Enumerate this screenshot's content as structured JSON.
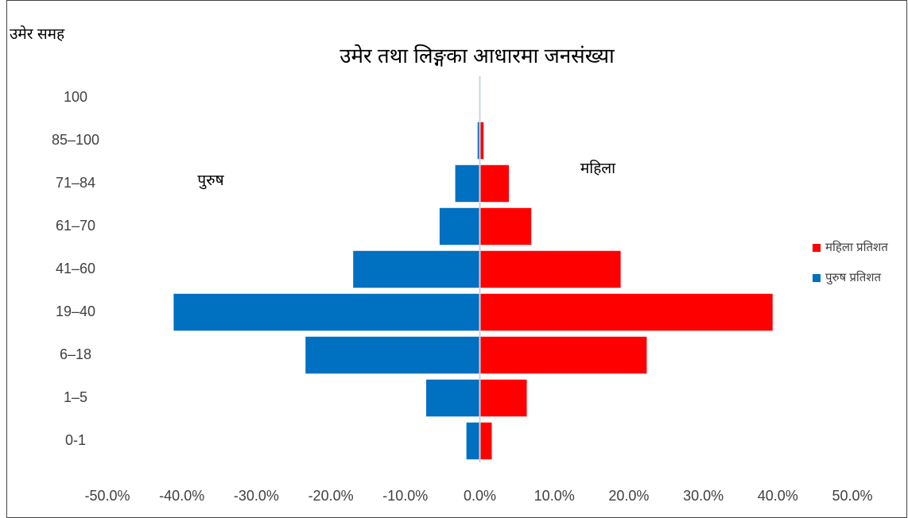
{
  "chart_data": {
    "type": "bar",
    "orientation": "horizontal",
    "title": "उमेर तथा लिङ्गका आधारमा जनसंख्या",
    "y_label": "उमेर समह",
    "annotations": [
      "पुरुष",
      "महिला"
    ],
    "categories": [
      "0-1",
      "1–5",
      "6–18",
      "19–40",
      "41–60",
      "61–70",
      "71–84",
      "85–100",
      "100"
    ],
    "series": [
      {
        "name": "महिला प्रतिशत",
        "color": "#ff0000",
        "values": [
          1.6,
          6.3,
          22.4,
          39.3,
          18.9,
          6.9,
          3.9,
          0.5,
          0.1
        ]
      },
      {
        "name": "पुरुष प्रतिशत",
        "color": "#0070c0",
        "values": [
          -1.8,
          -7.2,
          -23.4,
          -41.1,
          -17.0,
          -5.4,
          -3.3,
          -0.3,
          -0.1
        ]
      }
    ],
    "xlim": [
      -50,
      50
    ],
    "xticks": [
      {
        "value": -50,
        "label": "-50.0%"
      },
      {
        "value": -40,
        "label": "-40.0%"
      },
      {
        "value": -30,
        "label": "-30.0%"
      },
      {
        "value": -20,
        "label": "-20.0%"
      },
      {
        "value": -10,
        "label": "-10.0%"
      },
      {
        "value": 0,
        "label": "0.0%"
      },
      {
        "value": 10,
        "label": "10.0%"
      },
      {
        "value": 20,
        "label": "20.0%"
      },
      {
        "value": 30,
        "label": "30.0%"
      },
      {
        "value": 40,
        "label": "40.0%"
      },
      {
        "value": 50,
        "label": "50.0%"
      }
    ],
    "grid": false,
    "legend": "right"
  }
}
